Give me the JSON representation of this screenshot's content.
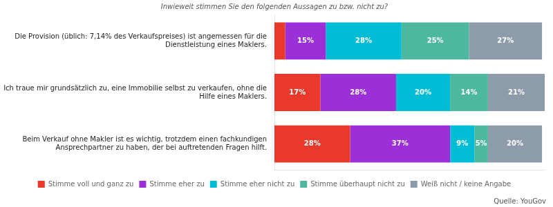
{
  "chart_data": {
    "type": "bar",
    "orientation": "horizontal",
    "stacked": true,
    "subtitle": "Inwieweit stimmen Sie den folgenden Aussagen zu bzw. nicht zu?",
    "annotations": [
      "Quelle: YouGov"
    ],
    "categories": [
      "Die Provision (üblich: 7,14% des Verkaufspreises) ist angemessen für die\nDienstleistung eines Maklers.",
      "Ich traue mir grundsätzlich zu, eine Immobilie selbst zu verkaufen, ohne die\nHilfe eines Maklers.",
      "Beim Verkauf ohne Makler ist es wichtig, trotzdem einen fachkundigen\nAnsprechpartner zu haben, der bei auftretenden Fragen hilft."
    ],
    "series": [
      {
        "name": "Stimme voll und ganz zu",
        "color": "#e8392a",
        "values": [
          4,
          17,
          28
        ],
        "value_labels": [
          null,
          "17%",
          "28%"
        ]
      },
      {
        "name": "Stimme eher zu",
        "color": "#9b30d9",
        "values": [
          15,
          28,
          37
        ],
        "value_labels": [
          "15%",
          "28%",
          "37%"
        ]
      },
      {
        "name": "Stimme eher nicht zu",
        "color": "#00bcd4",
        "values": [
          28,
          20,
          9
        ],
        "value_labels": [
          "28%",
          "20%",
          "9%"
        ]
      },
      {
        "name": "Stimme überhaupt nicht zu",
        "color": "#4db89e",
        "values": [
          25,
          14,
          5
        ],
        "value_labels": [
          "25%",
          "14%",
          "5%"
        ]
      },
      {
        "name": "Weiß nicht / keine Angabe",
        "color": "#8e9bab",
        "values": [
          27,
          21,
          20
        ],
        "value_labels": [
          "27%",
          "21%",
          "20%"
        ]
      }
    ],
    "xlim": [
      0,
      100
    ],
    "grid": false,
    "legend": "bottom",
    "data_labels": true,
    "tick_labels": "y"
  }
}
